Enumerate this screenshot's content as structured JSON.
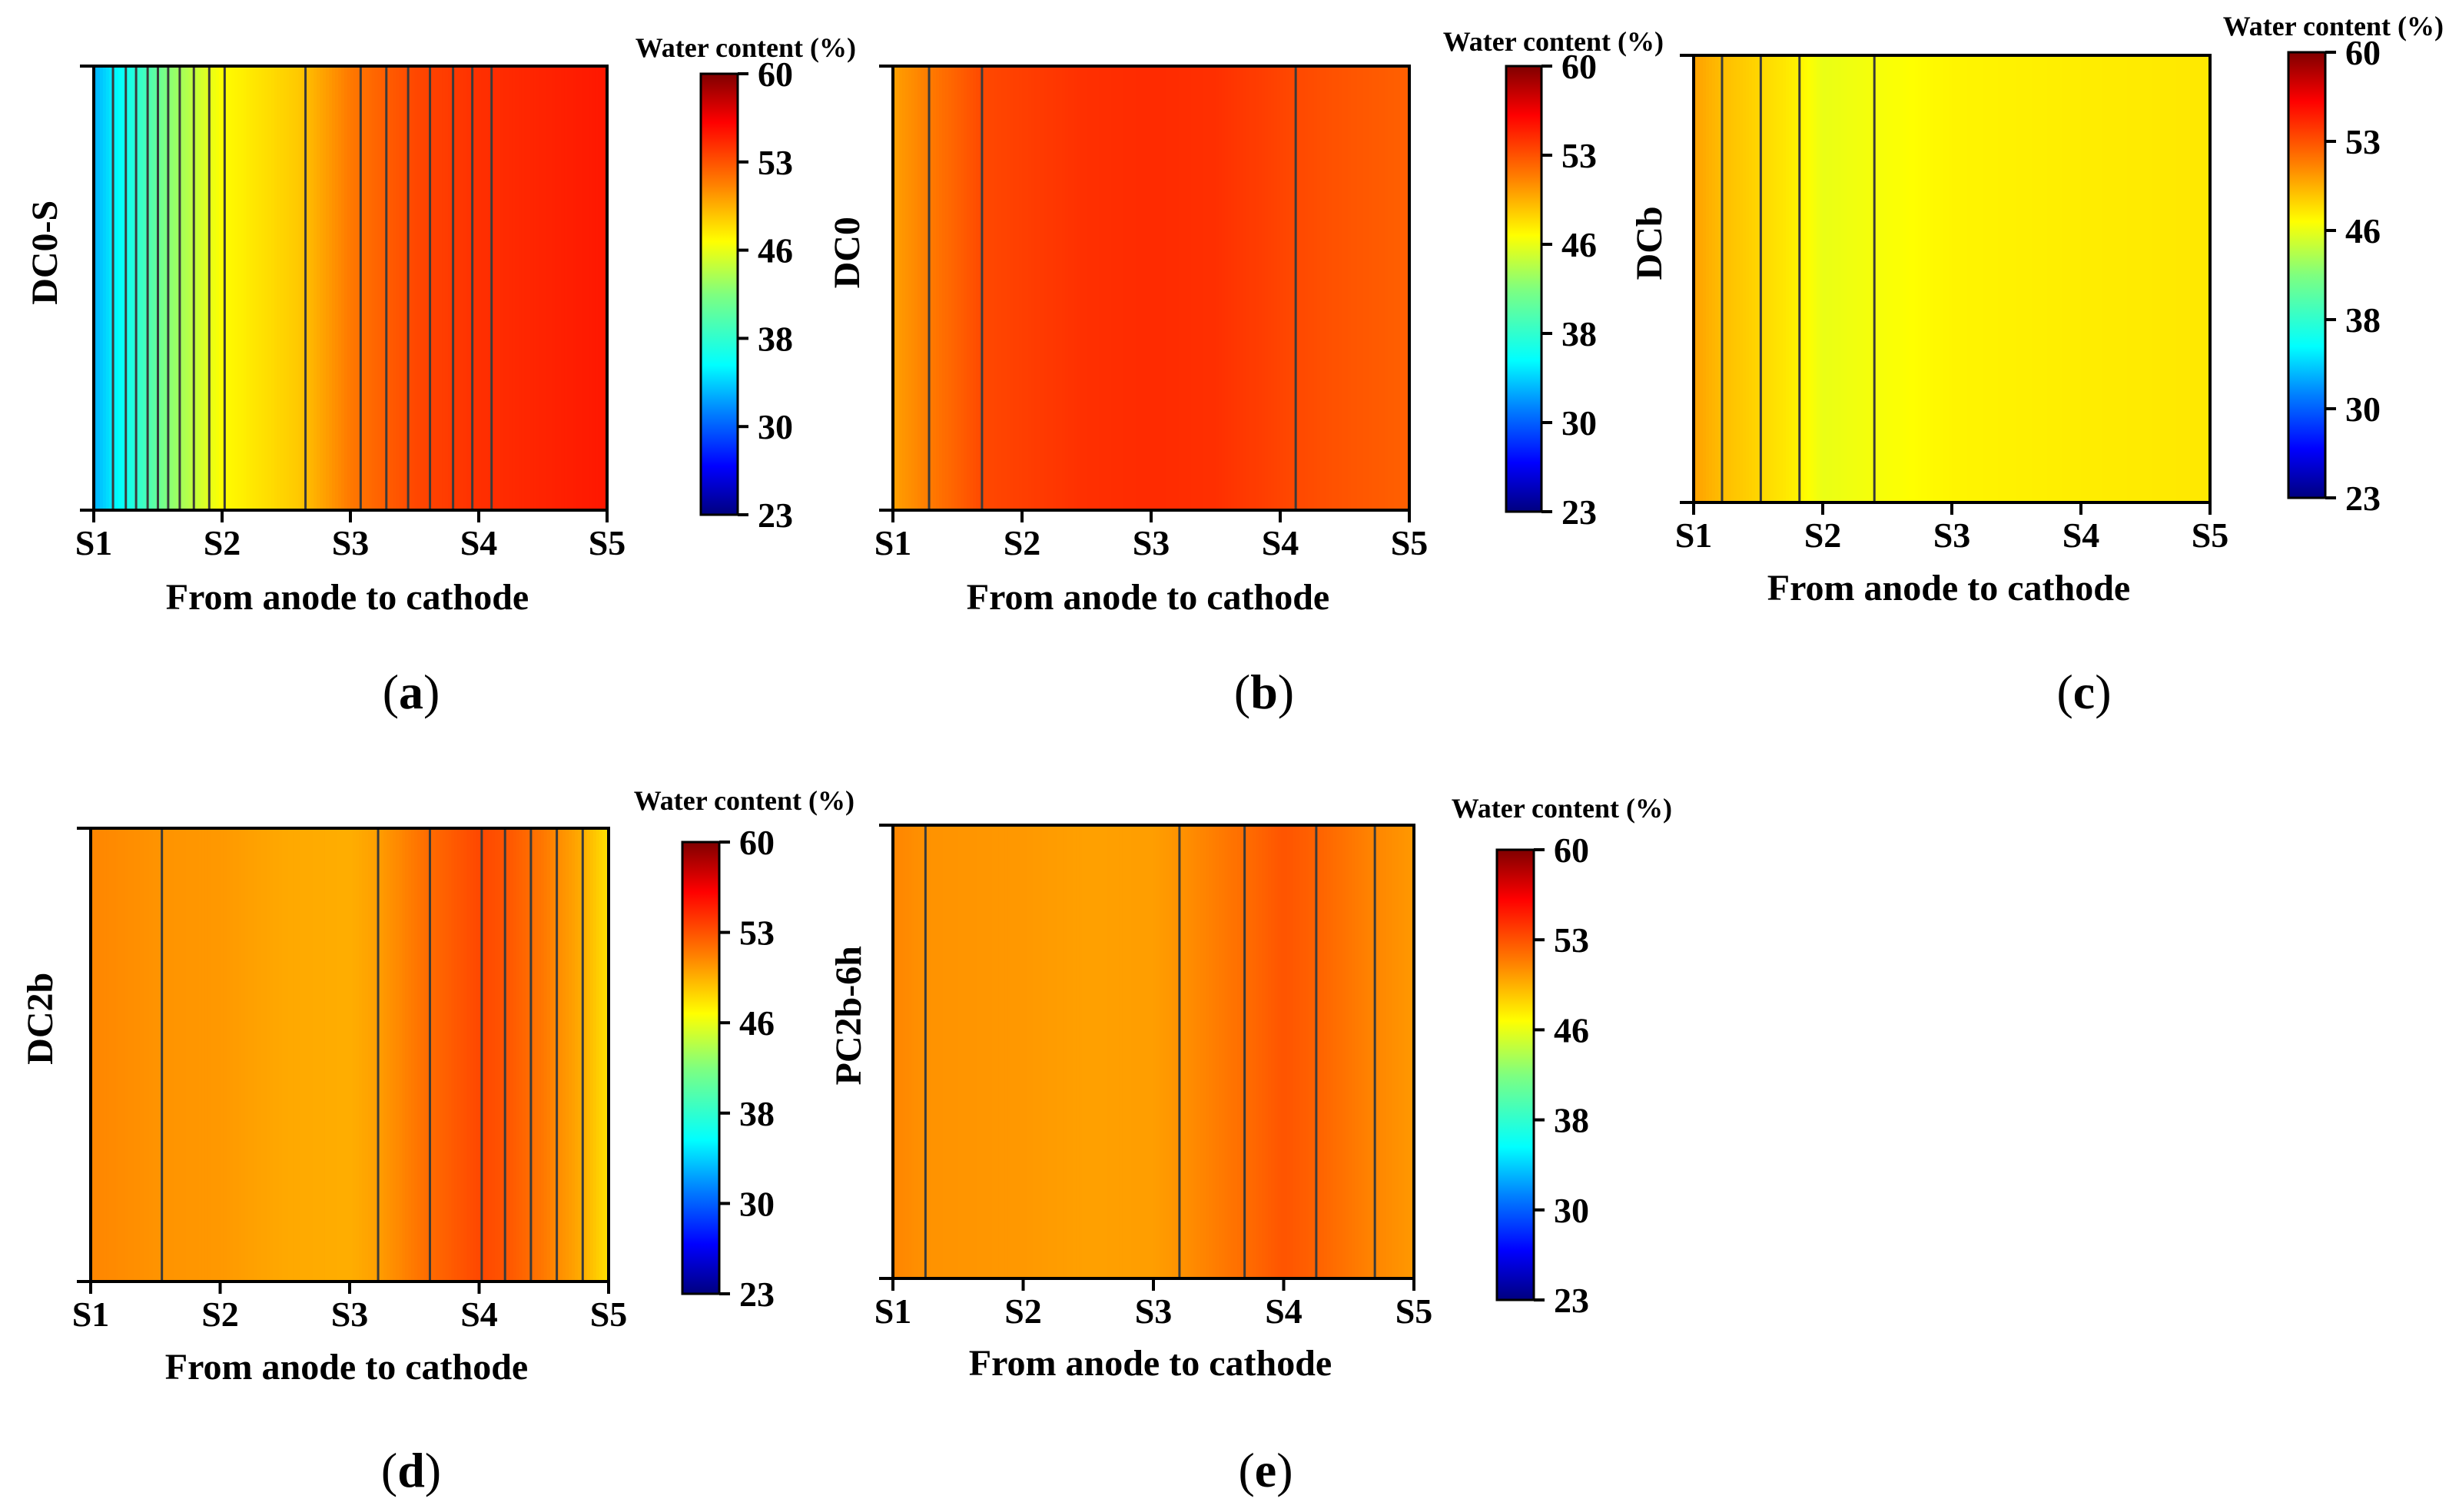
{
  "chart_data": [
    {
      "type": "heatmap",
      "panel_label": "(a)",
      "panel_letter": "a",
      "ylabel": "DC0-S",
      "xlabel": "From anode to cathode",
      "x_ticks": [
        "S1",
        "S2",
        "S3",
        "S4",
        "S5"
      ],
      "x_range": [
        1,
        5
      ],
      "colorbar_title": "Water content (%)",
      "colorbar_ticks": [
        "60",
        "53",
        "46",
        "38",
        "30",
        "23"
      ],
      "colorbar_range": [
        23,
        60
      ],
      "profile": {
        "x": [
          1.0,
          1.3,
          1.6,
          2.0,
          2.6,
          3.0,
          3.5,
          4.0,
          4.5,
          5.0
        ],
        "water_content": [
          33,
          37,
          42,
          46,
          48,
          51,
          53,
          54,
          54.5,
          55
        ]
      },
      "contour_x": [
        1.15,
        1.25,
        1.33,
        1.42,
        1.5,
        1.58,
        1.67,
        1.78,
        1.9,
        2.02,
        2.65,
        3.08,
        3.28,
        3.45,
        3.62,
        3.8,
        3.95,
        4.1
      ]
    },
    {
      "type": "heatmap",
      "panel_label": "(b)",
      "panel_letter": "b",
      "ylabel": "DC0",
      "xlabel": "From anode to cathode",
      "x_ticks": [
        "S1",
        "S2",
        "S3",
        "S4",
        "S5"
      ],
      "x_range": [
        1,
        5
      ],
      "colorbar_title": "Water content (%)",
      "colorbar_ticks": [
        "60",
        "53",
        "46",
        "38",
        "30",
        "23"
      ],
      "colorbar_range": [
        23,
        60
      ],
      "profile": {
        "x": [
          1.0,
          1.3,
          1.7,
          2.5,
          3.0,
          3.5,
          4.1,
          4.5,
          5.0
        ],
        "water_content": [
          49.5,
          51,
          53,
          54,
          54.2,
          54,
          53,
          52.5,
          52
        ]
      },
      "contour_x": [
        1.28,
        1.69,
        4.12
      ]
    },
    {
      "type": "heatmap",
      "panel_label": "(c)",
      "panel_letter": "c",
      "ylabel": "DCb",
      "xlabel": "From anode to cathode",
      "x_ticks": [
        "S1",
        "S2",
        "S3",
        "S4",
        "S5"
      ],
      "x_range": [
        1,
        5
      ],
      "colorbar_title": "Water content (%)",
      "colorbar_ticks": [
        "60",
        "53",
        "46",
        "38",
        "30",
        "23"
      ],
      "colorbar_range": [
        23,
        60
      ],
      "profile": {
        "x": [
          1.0,
          1.2,
          1.5,
          1.8,
          2.0,
          2.4,
          3.0,
          4.0,
          5.0
        ],
        "water_content": [
          49.5,
          48.5,
          47.5,
          46.5,
          45.2,
          45.6,
          46.3,
          46.6,
          46.8
        ]
      },
      "contour_x": [
        1.22,
        1.52,
        1.82,
        2.4
      ]
    },
    {
      "type": "heatmap",
      "panel_label": "(d)",
      "panel_letter": "d",
      "ylabel": "DC2b",
      "xlabel": "From anode to cathode",
      "x_ticks": [
        "S1",
        "S2",
        "S3",
        "S4",
        "S5"
      ],
      "x_range": [
        1,
        5
      ],
      "colorbar_title": "Water content (%)",
      "colorbar_ticks": [
        "60",
        "53",
        "46",
        "38",
        "30",
        "23"
      ],
      "colorbar_range": [
        23,
        60
      ],
      "profile": {
        "x": [
          1.0,
          1.5,
          2.0,
          2.5,
          3.0,
          3.2,
          3.6,
          4.0,
          4.2,
          4.5,
          4.8,
          5.0
        ],
        "water_content": [
          50.5,
          50,
          49.8,
          49.2,
          49,
          49.5,
          51.5,
          53,
          52.5,
          51,
          49,
          47
        ]
      },
      "contour_x": [
        1.55,
        3.22,
        3.62,
        4.02,
        4.2,
        4.4,
        4.6,
        4.8
      ]
    },
    {
      "type": "heatmap",
      "panel_label": "(e)",
      "panel_letter": "e",
      "ylabel": "PC2b-6h",
      "xlabel": "From anode to cathode",
      "x_ticks": [
        "S1",
        "S2",
        "S3",
        "S4",
        "S5"
      ],
      "x_range": [
        1,
        5
      ],
      "colorbar_title": "Water content (%)",
      "colorbar_ticks": [
        "60",
        "53",
        "46",
        "38",
        "30",
        "23"
      ],
      "colorbar_range": [
        23,
        60
      ],
      "profile": {
        "x": [
          1.0,
          1.3,
          2.0,
          2.5,
          3.0,
          3.2,
          3.7,
          4.0,
          4.3,
          4.7,
          5.0
        ],
        "water_content": [
          50.5,
          50,
          49.8,
          49.5,
          49.6,
          50,
          51.5,
          52.5,
          51.8,
          50.5,
          49.8
        ]
      },
      "contour_x": [
        1.25,
        3.2,
        3.7,
        4.25,
        4.7
      ]
    }
  ]
}
